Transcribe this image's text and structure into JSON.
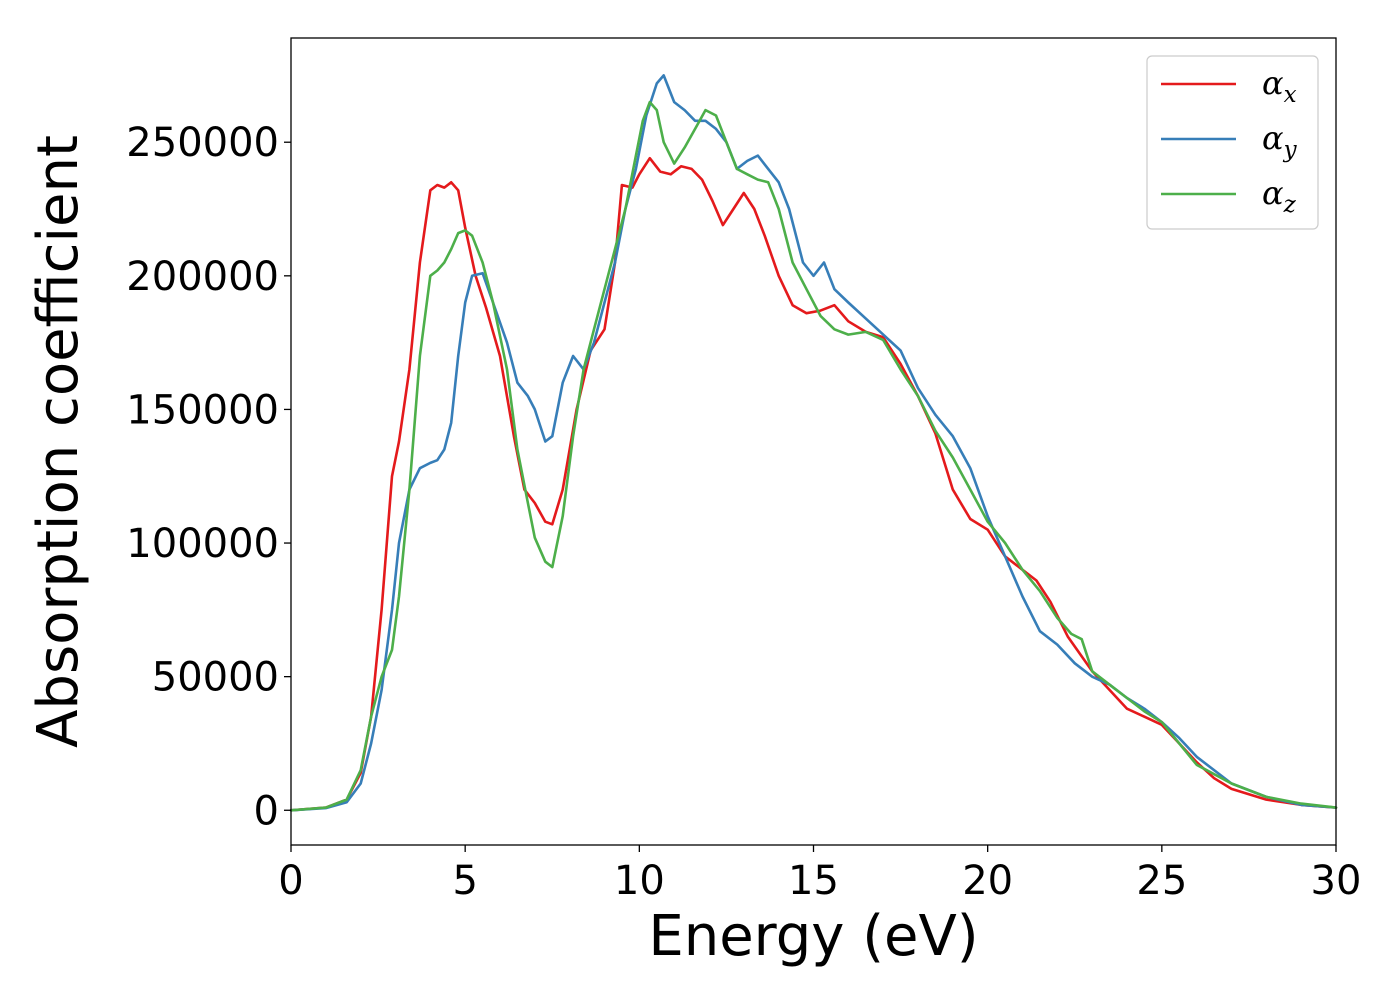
{
  "chart_data": {
    "type": "line",
    "title": "",
    "xlabel": "Energy (eV)",
    "ylabel": "Absorption coefficient",
    "xlim": [
      0,
      30
    ],
    "ylim": [
      -13000,
      289000
    ],
    "x_ticks": [
      0,
      5,
      10,
      15,
      20,
      25,
      30
    ],
    "x_tick_labels": [
      "0",
      "5",
      "10",
      "15",
      "20",
      "25",
      "30"
    ],
    "y_ticks": [
      0,
      50000,
      100000,
      150000,
      200000,
      250000
    ],
    "y_tick_labels": [
      "0",
      "50000",
      "100000",
      "150000",
      "200000",
      "250000"
    ],
    "grid": false,
    "legend_position": "top-right",
    "series": [
      {
        "name": "α",
        "subscript": "x",
        "color": "#e41a1c",
        "x": [
          0,
          1,
          1.6,
          2,
          2.3,
          2.6,
          2.9,
          3.1,
          3.4,
          3.7,
          4.0,
          4.2,
          4.4,
          4.6,
          4.8,
          5.0,
          5.3,
          5.6,
          6.0,
          6.4,
          6.7,
          7.0,
          7.3,
          7.5,
          7.8,
          8.2,
          8.6,
          9.0,
          9.3,
          9.5,
          9.8,
          10.0,
          10.3,
          10.6,
          10.9,
          11.2,
          11.5,
          11.8,
          12.1,
          12.4,
          12.7,
          13.0,
          13.3,
          13.6,
          14.0,
          14.4,
          14.8,
          15.2,
          15.6,
          16.0,
          16.5,
          17.0,
          17.5,
          18.0,
          18.5,
          19.0,
          19.5,
          20.0,
          20.5,
          21.0,
          21.4,
          21.8,
          22.3,
          23.0,
          23.5,
          24.0,
          24.5,
          25.0,
          25.5,
          26.0,
          26.5,
          27.0,
          28.0,
          29.0,
          30.0
        ],
        "y": [
          0,
          1000,
          4000,
          14000,
          35000,
          75000,
          125000,
          138000,
          165000,
          205000,
          232000,
          234000,
          233000,
          235000,
          232000,
          218000,
          200000,
          188000,
          170000,
          140000,
          120000,
          115000,
          108000,
          107000,
          120000,
          150000,
          172000,
          180000,
          205000,
          234000,
          233000,
          238000,
          244000,
          239000,
          238000,
          241000,
          240000,
          236000,
          228000,
          219000,
          225000,
          231000,
          225000,
          215000,
          200000,
          189000,
          186000,
          187000,
          189000,
          183000,
          179000,
          177000,
          167000,
          155000,
          141000,
          120000,
          109000,
          105000,
          95000,
          90000,
          86000,
          78000,
          65000,
          52000,
          45000,
          38000,
          35000,
          32000,
          25000,
          18000,
          12000,
          8000,
          4000,
          2000,
          1000
        ]
      },
      {
        "name": "α",
        "subscript": "y",
        "color": "#377eb8",
        "x": [
          0,
          1,
          1.6,
          2,
          2.3,
          2.6,
          2.9,
          3.1,
          3.4,
          3.7,
          4.0,
          4.2,
          4.4,
          4.6,
          4.8,
          5.0,
          5.2,
          5.5,
          5.8,
          6.2,
          6.5,
          6.8,
          7.0,
          7.3,
          7.5,
          7.8,
          8.1,
          8.4,
          8.7,
          9.0,
          9.3,
          9.6,
          9.9,
          10.2,
          10.5,
          10.7,
          11.0,
          11.3,
          11.6,
          11.9,
          12.2,
          12.5,
          12.8,
          13.1,
          13.4,
          13.7,
          14.0,
          14.3,
          14.7,
          15.0,
          15.3,
          15.6,
          16.0,
          16.5,
          17.0,
          17.5,
          18.0,
          18.5,
          19.0,
          19.5,
          20.0,
          20.5,
          21.0,
          21.5,
          22.0,
          22.5,
          23.0,
          23.5,
          24.0,
          24.5,
          25.0,
          25.5,
          26.0,
          27.0,
          28.0,
          29.0,
          30.0
        ],
        "y": [
          0,
          800,
          3000,
          10000,
          25000,
          45000,
          75000,
          100000,
          120000,
          128000,
          130000,
          131000,
          135000,
          145000,
          170000,
          190000,
          200000,
          201000,
          190000,
          175000,
          160000,
          155000,
          150000,
          138000,
          140000,
          160000,
          170000,
          165000,
          175000,
          190000,
          205000,
          225000,
          240000,
          260000,
          272000,
          275000,
          265000,
          262000,
          258000,
          258000,
          255000,
          250000,
          240000,
          243000,
          245000,
          240000,
          235000,
          225000,
          205000,
          200000,
          205000,
          195000,
          190000,
          184000,
          178000,
          172000,
          158000,
          148000,
          140000,
          128000,
          110000,
          95000,
          80000,
          67000,
          62000,
          55000,
          50000,
          47000,
          42000,
          38000,
          33000,
          27000,
          20000,
          10000,
          5000,
          2000,
          1000
        ]
      },
      {
        "name": "α",
        "subscript": "z",
        "color": "#4daf4a",
        "x": [
          0,
          1,
          1.6,
          2,
          2.3,
          2.6,
          2.9,
          3.1,
          3.4,
          3.7,
          4.0,
          4.2,
          4.4,
          4.6,
          4.8,
          5.0,
          5.2,
          5.5,
          5.8,
          6.2,
          6.5,
          6.8,
          7.0,
          7.3,
          7.5,
          7.8,
          8.1,
          8.4,
          8.7,
          9.0,
          9.3,
          9.6,
          9.9,
          10.1,
          10.3,
          10.5,
          10.7,
          11.0,
          11.3,
          11.6,
          11.9,
          12.2,
          12.5,
          12.8,
          13.1,
          13.4,
          13.7,
          14.0,
          14.4,
          14.8,
          15.2,
          15.6,
          16.0,
          16.5,
          17.0,
          17.5,
          18.0,
          18.5,
          19.0,
          19.5,
          20.0,
          20.5,
          21.0,
          21.5,
          22.0,
          22.4,
          22.7,
          23.0,
          23.5,
          24.0,
          24.5,
          25.0,
          25.5,
          26.0,
          27.0,
          28.0,
          29.0,
          30.0
        ],
        "y": [
          0,
          1000,
          4000,
          15000,
          35000,
          50000,
          60000,
          80000,
          120000,
          170000,
          200000,
          202000,
          205000,
          210000,
          216000,
          217000,
          215000,
          205000,
          190000,
          165000,
          135000,
          115000,
          102000,
          93000,
          91000,
          110000,
          140000,
          165000,
          180000,
          195000,
          210000,
          225000,
          245000,
          258000,
          265000,
          262000,
          250000,
          242000,
          248000,
          255000,
          262000,
          260000,
          250000,
          240000,
          238000,
          236000,
          235000,
          225000,
          205000,
          195000,
          185000,
          180000,
          178000,
          179000,
          176000,
          165000,
          155000,
          142000,
          132000,
          120000,
          108000,
          100000,
          90000,
          82000,
          72000,
          66000,
          64000,
          52000,
          47000,
          42000,
          37000,
          33000,
          25000,
          17000,
          10000,
          5000,
          2500,
          1000
        ]
      }
    ]
  }
}
